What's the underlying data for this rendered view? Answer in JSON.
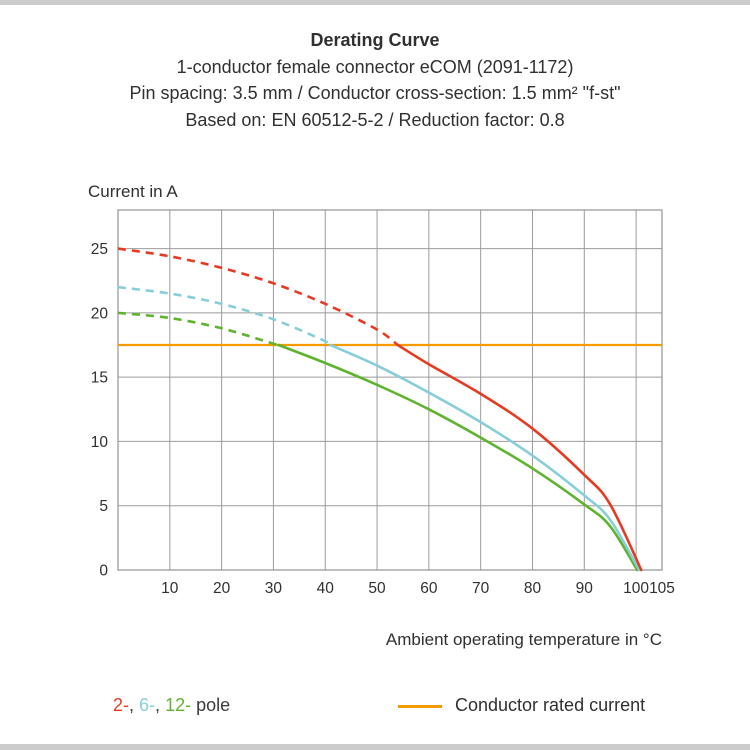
{
  "page": {
    "title": "Derating Curve",
    "subtitle1": "1-conductor female connector eCOM (2091-1172)",
    "subtitle2": "Pin spacing: 3.5 mm / Conductor cross-section: 1.5 mm² \"f-st\"",
    "subtitle3": "Based on: EN 60512-5-2 / Reduction factor: 0.8"
  },
  "chart_data": {
    "type": "line",
    "title": "Derating Curve",
    "ylabel": "Current in A",
    "xlabel": "Ambient operating temperature in °C",
    "xlim": [
      0,
      105
    ],
    "ylim": [
      0,
      28
    ],
    "xticks": [
      10,
      20,
      30,
      40,
      50,
      60,
      70,
      80,
      90,
      100,
      105
    ],
    "yticks": [
      0,
      5,
      10,
      15,
      20,
      25
    ],
    "grid": true,
    "grid_color": "#9b9b9b",
    "rated_current": {
      "label": "Conductor rated current",
      "value": 17.5,
      "color": "#f59b00"
    },
    "series": [
      {
        "name": "12-pole",
        "color": "#5eb32f",
        "dash_until": 31,
        "points": [
          [
            0,
            20
          ],
          [
            10,
            19.6
          ],
          [
            20,
            18.8
          ],
          [
            30,
            17.6
          ],
          [
            31,
            17.5
          ],
          [
            40,
            16.1
          ],
          [
            50,
            14.4
          ],
          [
            60,
            12.5
          ],
          [
            70,
            10.3
          ],
          [
            80,
            7.9
          ],
          [
            90,
            5.1
          ],
          [
            95,
            3.4
          ],
          [
            100.2,
            0
          ]
        ]
      },
      {
        "name": "6-pole",
        "color": "#87ced9",
        "dash_until": 41,
        "points": [
          [
            0,
            22
          ],
          [
            10,
            21.5
          ],
          [
            20,
            20.7
          ],
          [
            30,
            19.5
          ],
          [
            40,
            17.8
          ],
          [
            41,
            17.5
          ],
          [
            50,
            15.9
          ],
          [
            60,
            13.8
          ],
          [
            70,
            11.5
          ],
          [
            80,
            8.9
          ],
          [
            90,
            5.8
          ],
          [
            95,
            3.9
          ],
          [
            100.6,
            0
          ]
        ]
      },
      {
        "name": "2-pole",
        "color": "#e63b23",
        "dash_until": 54,
        "points": [
          [
            0,
            25
          ],
          [
            10,
            24.4
          ],
          [
            20,
            23.5
          ],
          [
            30,
            22.3
          ],
          [
            40,
            20.7
          ],
          [
            50,
            18.7
          ],
          [
            54,
            17.5
          ],
          [
            60,
            16
          ],
          [
            70,
            13.7
          ],
          [
            80,
            11
          ],
          [
            90,
            7.4
          ],
          [
            95,
            5.1
          ],
          [
            101,
            0
          ]
        ]
      }
    ]
  },
  "legend": {
    "pole_parts": [
      {
        "text": "2-",
        "color": "#e63b23"
      },
      {
        "text": ", ",
        "color": "#3a3a3a"
      },
      {
        "text": "6-",
        "color": "#87ced9"
      },
      {
        "text": ", ",
        "color": "#3a3a3a"
      },
      {
        "text": "12-",
        "color": "#5eb32f"
      },
      {
        "text": " pole",
        "color": "#3a3a3a"
      }
    ],
    "rated_label": "Conductor rated current"
  }
}
